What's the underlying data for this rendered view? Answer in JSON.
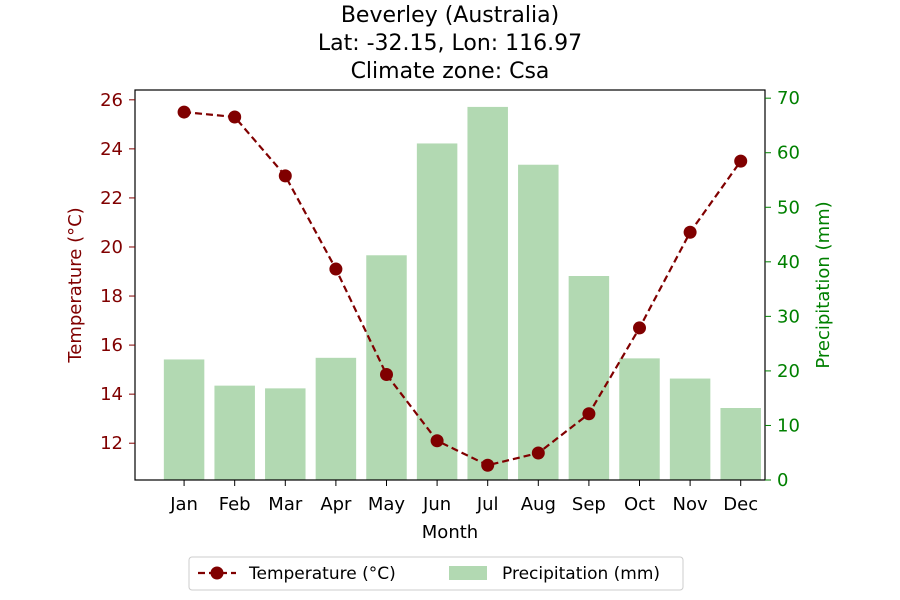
{
  "chart_data": {
    "type": "bar+line",
    "title_lines": [
      "Beverley (Australia)",
      "Lat: -32.15, Lon: 116.97",
      "Climate zone: Csa"
    ],
    "xlabel": "Month",
    "categories": [
      "Jan",
      "Feb",
      "Mar",
      "Apr",
      "May",
      "Jun",
      "Jul",
      "Aug",
      "Sep",
      "Oct",
      "Nov",
      "Dec"
    ],
    "left_axis": {
      "label": "Temperature (°C)",
      "ylim": [
        10.5,
        26.4
      ],
      "ticks": [
        "12",
        "14",
        "16",
        "18",
        "20",
        "22",
        "24",
        "26"
      ],
      "color": "#800000"
    },
    "right_axis": {
      "label": "Precipitation (mm)",
      "ylim": [
        0,
        71.5
      ],
      "ticks": [
        "0",
        "10",
        "20",
        "30",
        "40",
        "50",
        "60",
        "70"
      ],
      "color": "#008000"
    },
    "series": [
      {
        "name": "Temperature (°C)",
        "kind": "line",
        "axis": "left",
        "style": "dashed, circle markers",
        "color": "#800000",
        "values": [
          25.5,
          25.3,
          22.9,
          19.1,
          14.8,
          12.1,
          11.1,
          11.6,
          13.2,
          16.7,
          20.6,
          23.5
        ]
      },
      {
        "name": "Precipitation (mm)",
        "kind": "bar",
        "axis": "right",
        "color": "#b2d9b2",
        "values": [
          22.1,
          17.3,
          16.8,
          22.4,
          41.2,
          61.7,
          68.4,
          57.8,
          37.4,
          22.3,
          18.6,
          13.2
        ]
      }
    ],
    "legend_placement": "bottom-center"
  }
}
